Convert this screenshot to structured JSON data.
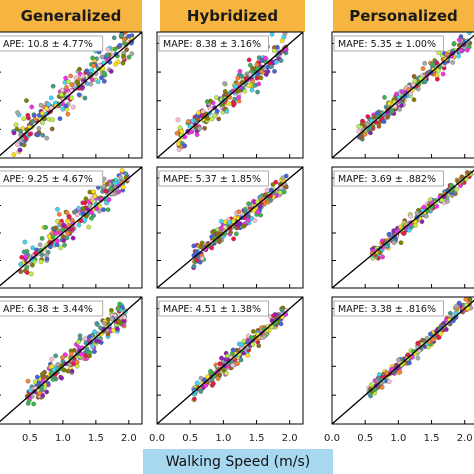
{
  "headers": [
    "Generalized",
    "Hybridized",
    "Personalized"
  ],
  "colors": {
    "header_bg": "#F6B440",
    "xlabel_bg": "#A8D8F0",
    "identity_line": "#000000",
    "point_palette": [
      "#e6194b",
      "#f58231",
      "#ffe119",
      "#bfef45",
      "#3cb44b",
      "#42d4f4",
      "#4363d8",
      "#911eb4",
      "#f032e6",
      "#a9a9a9",
      "#9A6324",
      "#808000",
      "#fabed4",
      "#469990"
    ]
  },
  "x_axis": {
    "label": "Walking Speed (m/s)",
    "ticks": [
      "0.0",
      "0.5",
      "1.0",
      "1.5",
      "2.0"
    ]
  },
  "chart_data": [
    {
      "type": "scatter",
      "row": 0,
      "col": 0,
      "annotation": "APE: 10.8 ± 4.77%",
      "xlim": [
        0,
        2.2
      ],
      "ylim": [
        0,
        2.2
      ],
      "x_range": [
        0.25,
        2.05
      ],
      "spread": 0.16,
      "bias": 0.03
    },
    {
      "type": "scatter",
      "row": 0,
      "col": 1,
      "annotation": "MAPE: 8.38 ± 3.16%",
      "xlim": [
        0,
        2.2
      ],
      "ylim": [
        0,
        2.2
      ],
      "x_range": [
        0.3,
        1.95
      ],
      "spread": 0.13,
      "bias": 0.0
    },
    {
      "type": "scatter",
      "row": 0,
      "col": 2,
      "annotation": "MAPE: 5.35 ± 1.00%",
      "xlim": [
        0,
        2.2
      ],
      "ylim": [
        0,
        2.2
      ],
      "x_range": [
        0.4,
        2.1
      ],
      "spread": 0.09,
      "bias": 0.0
    },
    {
      "type": "scatter",
      "row": 1,
      "col": 0,
      "annotation": "APE: 9.25 ± 4.67%",
      "xlim": [
        0,
        2.2
      ],
      "ylim": [
        0,
        2.2
      ],
      "x_range": [
        0.35,
        2.0
      ],
      "spread": 0.14,
      "bias": 0.05
    },
    {
      "type": "scatter",
      "row": 1,
      "col": 1,
      "annotation": "MAPE: 5.37 ± 1.85%",
      "xlim": [
        0,
        2.2
      ],
      "ylim": [
        0,
        2.2
      ],
      "x_range": [
        0.55,
        1.95
      ],
      "spread": 0.09,
      "bias": 0.0
    },
    {
      "type": "scatter",
      "row": 1,
      "col": 2,
      "annotation": "MAPE: 3.69 ± .882%",
      "xlim": [
        0,
        2.2
      ],
      "ylim": [
        0,
        2.2
      ],
      "x_range": [
        0.6,
        2.1
      ],
      "spread": 0.06,
      "bias": 0.0
    },
    {
      "type": "scatter",
      "row": 2,
      "col": 0,
      "annotation": "APE: 6.38 ± 3.44%",
      "xlim": [
        0,
        2.2
      ],
      "ylim": [
        0,
        2.2
      ],
      "x_range": [
        0.45,
        1.95
      ],
      "spread": 0.12,
      "bias": 0.0
    },
    {
      "type": "scatter",
      "row": 2,
      "col": 1,
      "annotation": "MAPE: 4.51 ± 1.38%",
      "xlim": [
        0,
        2.2
      ],
      "ylim": [
        0,
        2.2
      ],
      "x_range": [
        0.55,
        1.95
      ],
      "spread": 0.08,
      "bias": 0.0
    },
    {
      "type": "scatter",
      "row": 2,
      "col": 2,
      "annotation": "MAPE: 3.38 ± .816%",
      "xlim": [
        0,
        2.2
      ],
      "ylim": [
        0,
        2.2
      ],
      "x_range": [
        0.55,
        2.1
      ],
      "spread": 0.06,
      "bias": 0.0
    }
  ]
}
